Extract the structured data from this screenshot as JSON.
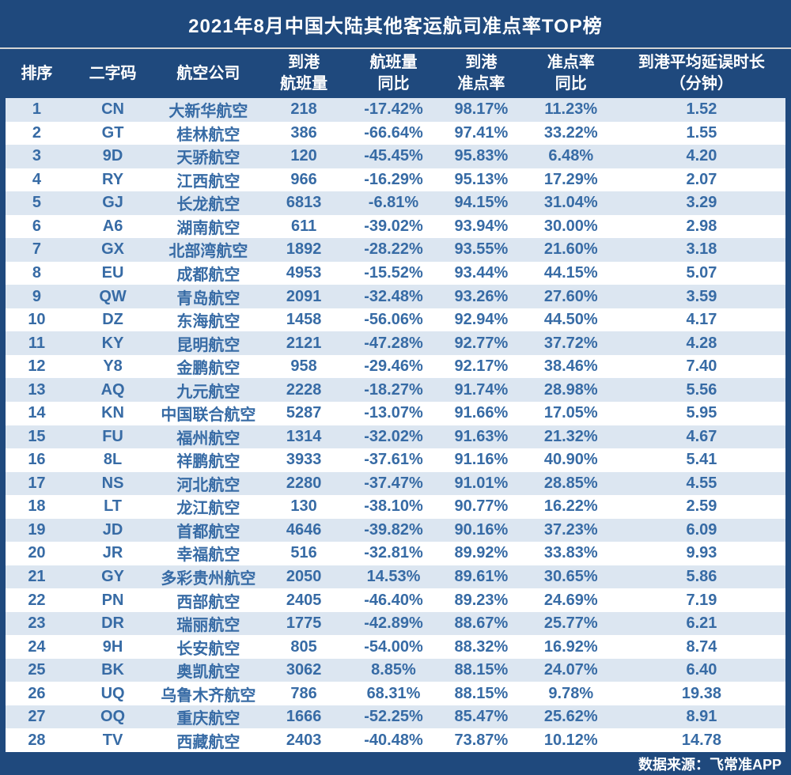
{
  "title": "2021年8月中国大陆其他客运航司准点率TOP榜",
  "header": {
    "columns": [
      {
        "line1": "排序",
        "line2": ""
      },
      {
        "line1": "二字码",
        "line2": ""
      },
      {
        "line1": "航空公司",
        "line2": ""
      },
      {
        "line1": "到港",
        "line2": "航班量"
      },
      {
        "line1": "航班量",
        "line2": "同比"
      },
      {
        "line1": "到港",
        "line2": "准点率"
      },
      {
        "line1": "准点率",
        "line2": "同比"
      },
      {
        "line1": "到港平均延误时长",
        "line2": "（分钟）"
      }
    ]
  },
  "chart_data": {
    "type": "table",
    "title": "2021年8月中国大陆其他客运航司准点率TOP榜",
    "columns": [
      "排序",
      "二字码",
      "航空公司",
      "到港航班量",
      "航班量同比",
      "到港准点率",
      "准点率同比",
      "到港平均延误时长（分钟）"
    ],
    "rows": [
      [
        "1",
        "CN",
        "大新华航空",
        "218",
        "-17.42%",
        "98.17%",
        "11.23%",
        "1.52"
      ],
      [
        "2",
        "GT",
        "桂林航空",
        "386",
        "-66.64%",
        "97.41%",
        "33.22%",
        "1.55"
      ],
      [
        "3",
        "9D",
        "天骄航空",
        "120",
        "-45.45%",
        "95.83%",
        "6.48%",
        "4.20"
      ],
      [
        "4",
        "RY",
        "江西航空",
        "966",
        "-16.29%",
        "95.13%",
        "17.29%",
        "2.07"
      ],
      [
        "5",
        "GJ",
        "长龙航空",
        "6813",
        "-6.81%",
        "94.15%",
        "31.04%",
        "3.29"
      ],
      [
        "6",
        "A6",
        "湖南航空",
        "611",
        "-39.02%",
        "93.94%",
        "30.00%",
        "2.98"
      ],
      [
        "7",
        "GX",
        "北部湾航空",
        "1892",
        "-28.22%",
        "93.55%",
        "21.60%",
        "3.18"
      ],
      [
        "8",
        "EU",
        "成都航空",
        "4953",
        "-15.52%",
        "93.44%",
        "44.15%",
        "5.07"
      ],
      [
        "9",
        "QW",
        "青岛航空",
        "2091",
        "-32.48%",
        "93.26%",
        "27.60%",
        "3.59"
      ],
      [
        "10",
        "DZ",
        "东海航空",
        "1458",
        "-56.06%",
        "92.94%",
        "44.50%",
        "4.17"
      ],
      [
        "11",
        "KY",
        "昆明航空",
        "2121",
        "-47.28%",
        "92.77%",
        "37.72%",
        "4.28"
      ],
      [
        "12",
        "Y8",
        "金鹏航空",
        "958",
        "-29.46%",
        "92.17%",
        "38.46%",
        "7.40"
      ],
      [
        "13",
        "AQ",
        "九元航空",
        "2228",
        "-18.27%",
        "91.74%",
        "28.98%",
        "5.56"
      ],
      [
        "14",
        "KN",
        "中国联合航空",
        "5287",
        "-13.07%",
        "91.66%",
        "17.05%",
        "5.95"
      ],
      [
        "15",
        "FU",
        "福州航空",
        "1314",
        "-32.02%",
        "91.63%",
        "21.32%",
        "4.67"
      ],
      [
        "16",
        "8L",
        "祥鹏航空",
        "3933",
        "-37.61%",
        "91.16%",
        "40.90%",
        "5.41"
      ],
      [
        "17",
        "NS",
        "河北航空",
        "2280",
        "-37.47%",
        "91.01%",
        "28.85%",
        "4.55"
      ],
      [
        "18",
        "LT",
        "龙江航空",
        "130",
        "-38.10%",
        "90.77%",
        "16.22%",
        "2.59"
      ],
      [
        "19",
        "JD",
        "首都航空",
        "4646",
        "-39.82%",
        "90.16%",
        "37.23%",
        "6.09"
      ],
      [
        "20",
        "JR",
        "幸福航空",
        "516",
        "-32.81%",
        "89.92%",
        "33.83%",
        "9.93"
      ],
      [
        "21",
        "GY",
        "多彩贵州航空",
        "2050",
        "14.53%",
        "89.61%",
        "30.65%",
        "5.86"
      ],
      [
        "22",
        "PN",
        "西部航空",
        "2405",
        "-46.40%",
        "89.23%",
        "24.69%",
        "7.19"
      ],
      [
        "23",
        "DR",
        "瑞丽航空",
        "1775",
        "-42.89%",
        "88.67%",
        "25.77%",
        "6.21"
      ],
      [
        "24",
        "9H",
        "长安航空",
        "805",
        "-54.00%",
        "88.32%",
        "16.92%",
        "8.74"
      ],
      [
        "25",
        "BK",
        "奥凯航空",
        "3062",
        "8.85%",
        "88.15%",
        "24.07%",
        "6.40"
      ],
      [
        "26",
        "UQ",
        "乌鲁木齐航空",
        "786",
        "68.31%",
        "88.15%",
        "9.78%",
        "19.38"
      ],
      [
        "27",
        "OQ",
        "重庆航空",
        "1666",
        "-52.25%",
        "85.47%",
        "25.62%",
        "8.91"
      ],
      [
        "28",
        "TV",
        "西藏航空",
        "2403",
        "-40.48%",
        "73.87%",
        "10.12%",
        "14.78"
      ]
    ],
    "source": "数据来源：飞常准APP"
  },
  "footer": {
    "source_label": "数据来源：飞常准APP"
  },
  "colors": {
    "frame_bg": "#1f497d",
    "alt_row_bg": "#dce6f1",
    "row_bg": "#ffffff",
    "data_text": "#376ba5",
    "header_text": "#ffffff",
    "separator": "#d4d4d4"
  }
}
